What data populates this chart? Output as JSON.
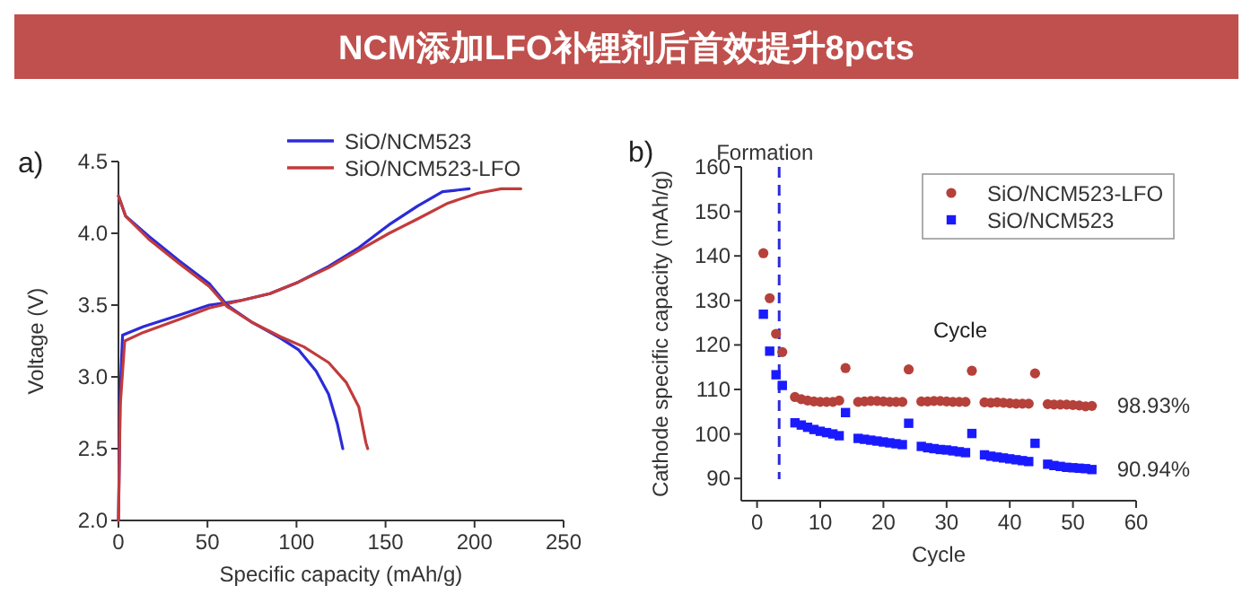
{
  "chart_data": [
    {
      "type": "line",
      "title": "NCM添加LFO补锂剂后首效提升8pcts",
      "xlabel": "Specific capacity (mAh/g)",
      "ylabel": "Voltage (V)",
      "xlim": [
        0,
        250
      ],
      "xticks": [
        0,
        50,
        100,
        150,
        200,
        250
      ],
      "ylim": [
        2.0,
        4.5
      ],
      "yticks": [
        {
          "value": 2.0,
          "label": "2.0"
        },
        {
          "value": 2.5,
          "label": "2.5"
        },
        {
          "value": 3.0,
          "label": "3.0"
        },
        {
          "value": 3.5,
          "label": "3.5"
        },
        {
          "value": 4.0,
          "label": "4.0"
        },
        {
          "value": 4.5,
          "label": "4.5"
        }
      ],
      "legend": "top right",
      "annotations": [
        "a)"
      ],
      "series": [
        {
          "name": "SiO/NCM523",
          "color": "#2b2bd9",
          "x": [
            0,
            1,
            2.3,
            14,
            34,
            51,
            68,
            85,
            101,
            118,
            135,
            152,
            168,
            182,
            197
          ],
          "values": [
            2.0,
            2.9,
            3.29,
            3.35,
            3.43,
            3.5,
            3.53,
            3.58,
            3.66,
            3.77,
            3.9,
            4.06,
            4.19,
            4.29,
            4.31
          ]
        },
        {
          "name": "SiO/NCM523-LFO",
          "color": "#c23b3b",
          "x": [
            0,
            1,
            3.5,
            14,
            34,
            51,
            68,
            85,
            101,
            118,
            135,
            152,
            168,
            185,
            202,
            215,
            226
          ],
          "values": [
            2.0,
            2.8,
            3.25,
            3.31,
            3.4,
            3.48,
            3.53,
            3.58,
            3.66,
            3.76,
            3.88,
            4.0,
            4.1,
            4.21,
            4.28,
            4.31,
            4.31
          ]
        },
        {
          "color": "#2b2bd9",
          "x": [
            0,
            4,
            17,
            34,
            51,
            61,
            75,
            91,
            101,
            111,
            118,
            123,
            126
          ],
          "values": [
            4.26,
            4.12,
            3.98,
            3.81,
            3.65,
            3.5,
            3.38,
            3.27,
            3.19,
            3.04,
            2.88,
            2.67,
            2.5
          ]
        },
        {
          "color": "#c23b3b",
          "x": [
            0,
            4,
            17,
            34,
            51,
            61,
            75,
            91,
            104,
            118,
            128,
            135,
            139,
            140
          ],
          "values": [
            4.26,
            4.12,
            3.96,
            3.79,
            3.63,
            3.49,
            3.38,
            3.28,
            3.21,
            3.1,
            2.96,
            2.79,
            2.54,
            2.5
          ]
        }
      ]
    },
    {
      "type": "scatter",
      "xlabel": "Cycle",
      "ylabel": "Cathode specific capacity (mAh/g)",
      "xlim": [
        -2.5,
        60
      ],
      "xticks": [
        0,
        10,
        20,
        30,
        40,
        50,
        60
      ],
      "ylim": [
        85,
        160
      ],
      "yticks": [
        90,
        100,
        110,
        120,
        130,
        140,
        150,
        160
      ],
      "legend": "top right",
      "ref_lines": [
        {
          "axis": "x",
          "value": 3.5,
          "label": "Formation",
          "color": "#2b2bd9",
          "line_style": "dashed"
        }
      ],
      "annotations": [
        "b)",
        "Cycle",
        {
          "text": "98.93%",
          "x": 53,
          "y": 106.3
        },
        {
          "text": "90.94%",
          "x": 53,
          "y": 92.0
        }
      ],
      "series": [
        {
          "name": "SiO/NCM523-LFO",
          "color": "#b5413a",
          "marker": "circle",
          "x": [
            1,
            2,
            3,
            4,
            6,
            7,
            8,
            9,
            10,
            11,
            12,
            13,
            14,
            16,
            17,
            18,
            19,
            20,
            21,
            22,
            23,
            24,
            26,
            27,
            28,
            29,
            30,
            31,
            32,
            33,
            34,
            36,
            37,
            38,
            39,
            40,
            41,
            42,
            43,
            44,
            46,
            47,
            48,
            49,
            50,
            51,
            52,
            53
          ],
          "values": [
            140.6,
            130.5,
            122.5,
            118.4,
            108.3,
            107.8,
            107.5,
            107.3,
            107.2,
            107.2,
            107.2,
            107.5,
            114.8,
            107.2,
            107.3,
            107.4,
            107.4,
            107.3,
            107.2,
            107.2,
            107.2,
            114.5,
            107.3,
            107.3,
            107.4,
            107.4,
            107.3,
            107.2,
            107.2,
            107.2,
            114.2,
            107.1,
            107.0,
            107.1,
            107.0,
            106.9,
            106.8,
            106.8,
            106.8,
            113.6,
            106.7,
            106.6,
            106.6,
            106.6,
            106.5,
            106.4,
            106.2,
            106.3
          ]
        },
        {
          "name": "SiO/NCM523",
          "color": "#1a1aff",
          "marker": "square",
          "x": [
            1,
            2,
            3,
            4,
            6,
            7,
            8,
            9,
            10,
            11,
            12,
            13,
            14,
            16,
            17,
            18,
            19,
            20,
            21,
            22,
            23,
            24,
            26,
            27,
            28,
            29,
            30,
            31,
            32,
            33,
            34,
            36,
            37,
            38,
            39,
            40,
            41,
            42,
            43,
            44,
            46,
            47,
            48,
            49,
            50,
            51,
            52,
            53
          ],
          "values": [
            126.9,
            118.6,
            113.3,
            110.9,
            102.5,
            102.0,
            101.5,
            101.0,
            100.6,
            100.3,
            100.0,
            99.6,
            104.8,
            99.0,
            98.8,
            98.6,
            98.4,
            98.2,
            98.0,
            97.8,
            97.6,
            102.4,
            97.2,
            96.9,
            96.7,
            96.5,
            96.4,
            96.2,
            96.0,
            95.8,
            100.1,
            95.3,
            95.0,
            94.8,
            94.6,
            94.4,
            94.2,
            94.0,
            93.8,
            97.9,
            93.2,
            92.9,
            92.7,
            92.5,
            92.4,
            92.3,
            92.2,
            92.0
          ]
        }
      ]
    }
  ]
}
